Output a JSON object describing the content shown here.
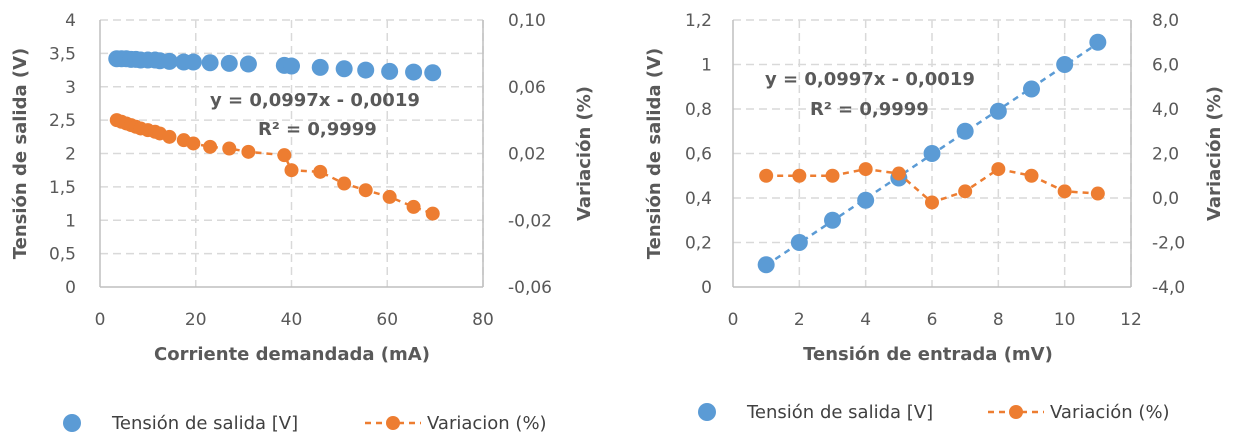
{
  "colors": {
    "blue": "#5b9bd5",
    "orange": "#ed7d31"
  },
  "chart_data": [
    {
      "type": "scatter",
      "xlabel": "Corriente demandada (mA)",
      "ylabel": "Tensión de salida (V)",
      "y2label": "Variación (%)",
      "xlim": [
        0,
        80
      ],
      "ylim": [
        0,
        4
      ],
      "y2lim": [
        -0.06,
        0.1
      ],
      "x_ticks": [
        "0",
        "20",
        "40",
        "60",
        "80"
      ],
      "y_ticks": [
        "0",
        "0,5",
        "1",
        "1,5",
        "2",
        "2,5",
        "3",
        "3,5",
        "4"
      ],
      "y2_ticks": [
        "-0,06",
        "-0,02",
        "0,02",
        "0,06",
        "0,10"
      ],
      "x_tick_values": [
        0,
        20,
        40,
        60,
        80
      ],
      "y_tick_values": [
        0,
        0.5,
        1,
        1.5,
        2,
        2.5,
        3,
        3.5,
        4
      ],
      "y2_tick_values": [
        -0.06,
        -0.02,
        0.02,
        0.06,
        0.1
      ],
      "annotation_equation": "y = 0,0997x - 0,0019",
      "annotation_r2": "R² = 0,9999",
      "series": [
        {
          "name": "Tensión de salida [V]",
          "axis": "left",
          "style": "markers",
          "x": [
            3.5,
            4.5,
            5.5,
            6.5,
            7.5,
            8.5,
            10,
            11.5,
            12.5,
            14.5,
            17.5,
            19.5,
            23,
            27,
            31,
            38.5,
            40,
            46,
            51,
            55.5,
            60.5,
            65.5,
            69.5
          ],
          "y": [
            3.42,
            3.42,
            3.42,
            3.41,
            3.41,
            3.4,
            3.4,
            3.4,
            3.39,
            3.38,
            3.37,
            3.37,
            3.36,
            3.35,
            3.34,
            3.32,
            3.31,
            3.29,
            3.27,
            3.25,
            3.23,
            3.22,
            3.21
          ]
        },
        {
          "name": "Variacion (%)",
          "axis": "right",
          "style": "dashed-line-markers",
          "x": [
            3.5,
            4.5,
            5.5,
            6.5,
            7.5,
            8.5,
            10,
            11.5,
            12.5,
            14.5,
            17.5,
            19.5,
            23,
            27,
            31,
            38.5,
            40,
            46,
            51,
            55.5,
            60.5,
            65.5,
            69.5
          ],
          "y": [
            0.04,
            0.039,
            0.038,
            0.037,
            0.036,
            0.035,
            0.034,
            0.033,
            0.032,
            0.03,
            0.028,
            0.026,
            0.024,
            0.023,
            0.021,
            0.019,
            0.01,
            0.009,
            0.002,
            -0.002,
            -0.006,
            -0.012,
            -0.016
          ]
        }
      ],
      "legend": {
        "position": "bottom"
      }
    },
    {
      "type": "scatter",
      "xlabel": "Tensión de entrada (mV)",
      "ylabel": "Tensión de salida (V)",
      "y2label": "Variación (%)",
      "xlim": [
        0,
        12
      ],
      "ylim": [
        0,
        1.2
      ],
      "y2lim": [
        -4,
        8
      ],
      "x_ticks": [
        "0",
        "2",
        "4",
        "6",
        "8",
        "10",
        "12"
      ],
      "y_ticks": [
        "0",
        "0,2",
        "0,4",
        "0,6",
        "0,8",
        "1",
        "1,2"
      ],
      "y2_ticks": [
        "-4,0",
        "-2,0",
        "0,0",
        "2,0",
        "4,0",
        "6,0",
        "8,0"
      ],
      "x_tick_values": [
        0,
        2,
        4,
        6,
        8,
        10,
        12
      ],
      "y_tick_values": [
        0,
        0.2,
        0.4,
        0.6,
        0.8,
        1,
        1.2
      ],
      "y2_tick_values": [
        -4,
        -2,
        0,
        2,
        4,
        6,
        8
      ],
      "annotation_equation": "y = 0,0997x - 0,0019",
      "annotation_r2": "R² = 0,9999",
      "trendline": {
        "slope": 0.0997,
        "intercept": -0.0019,
        "x_range": [
          1,
          11
        ]
      },
      "series": [
        {
          "name": "Tensión de salida [V]",
          "axis": "left",
          "style": "markers",
          "x": [
            1,
            2,
            3,
            4,
            5,
            6,
            7,
            8,
            9,
            10,
            11
          ],
          "y": [
            0.1,
            0.2,
            0.3,
            0.39,
            0.49,
            0.6,
            0.7,
            0.79,
            0.89,
            1.0,
            1.1
          ]
        },
        {
          "name": "Variación (%)",
          "axis": "right",
          "style": "dashed-line-markers",
          "x": [
            1,
            2,
            3,
            4,
            5,
            6,
            7,
            8,
            9,
            10,
            11
          ],
          "y": [
            1.0,
            1.0,
            1.0,
            1.3,
            1.1,
            -0.2,
            0.3,
            1.3,
            1.0,
            0.3,
            0.2
          ]
        }
      ],
      "legend": {
        "position": "bottom"
      }
    }
  ]
}
